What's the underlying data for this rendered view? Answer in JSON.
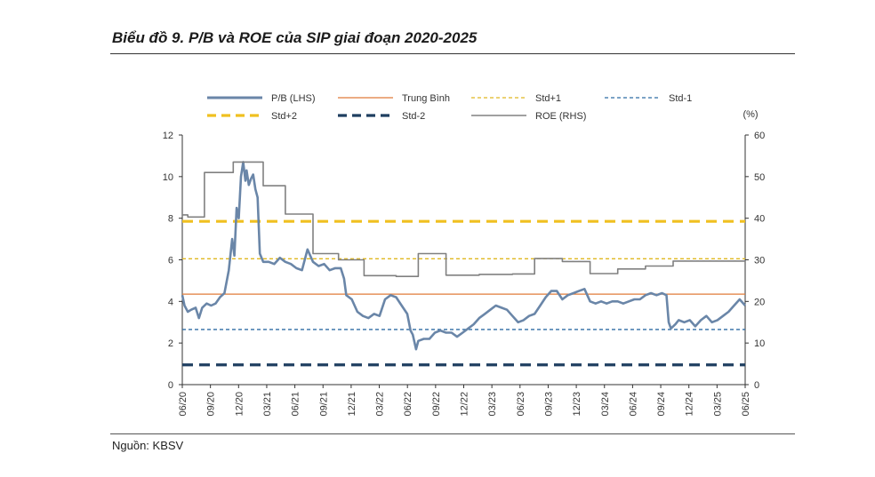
{
  "header": {
    "title": "Biểu đồ 9. P/B và ROE của SIP giai đoạn 2020-2025"
  },
  "footer": {
    "source": "Nguồn: KBSV"
  },
  "chart_data": {
    "type": "line",
    "title": "Biểu đồ 9. P/B và ROE của SIP giai đoạn 2020-2025",
    "ylim": [
      0,
      12
    ],
    "y_ticks": [
      0,
      2,
      4,
      6,
      8,
      10,
      12
    ],
    "y2lim": [
      0,
      60
    ],
    "y2_ticks": [
      0,
      10,
      20,
      30,
      40,
      50,
      60
    ],
    "y2_unit": "(%)",
    "x_range": [
      2020.42,
      2025.5
    ],
    "x_ticks": [
      "06/20",
      "09/20",
      "12/20",
      "03/21",
      "06/21",
      "09/21",
      "12/21",
      "03/22",
      "06/22",
      "09/22",
      "12/22",
      "03/23",
      "06/23",
      "09/23",
      "12/23",
      "03/24",
      "06/24",
      "09/24",
      "12/24",
      "03/25",
      "06/25"
    ],
    "grid": false,
    "legend_position": "top",
    "colors": {
      "pb": "#6a86a8",
      "mean": "#e07b39",
      "std1": "#e0b820",
      "stdm1": "#2e6ca4",
      "std2": "#f0c020",
      "stdm2": "#1f3f60",
      "roe": "#808080"
    },
    "legend": [
      {
        "label": "P/B (LHS)",
        "key": "pb"
      },
      {
        "label": "Trung Bình",
        "key": "mean"
      },
      {
        "label": "Std+1",
        "key": "std1"
      },
      {
        "label": "Std-1",
        "key": "stdm1"
      },
      {
        "label": "Std+2",
        "key": "std2"
      },
      {
        "label": "Std-2",
        "key": "stdm2"
      },
      {
        "label": "ROE (RHS)",
        "key": "roe"
      }
    ],
    "reference_lines": {
      "mean": 4.35,
      "std1": 6.05,
      "stdm1": 2.65,
      "std2": 7.85,
      "stdm2": 0.95
    },
    "series": [
      {
        "name": "P/B (LHS)",
        "axis": "left",
        "points": [
          [
            2020.42,
            4.3
          ],
          [
            2020.44,
            3.8
          ],
          [
            2020.47,
            3.5
          ],
          [
            2020.5,
            3.6
          ],
          [
            2020.54,
            3.7
          ],
          [
            2020.57,
            3.2
          ],
          [
            2020.6,
            3.7
          ],
          [
            2020.64,
            3.9
          ],
          [
            2020.68,
            3.8
          ],
          [
            2020.72,
            3.9
          ],
          [
            2020.76,
            4.2
          ],
          [
            2020.8,
            4.4
          ],
          [
            2020.84,
            5.5
          ],
          [
            2020.87,
            7.0
          ],
          [
            2020.89,
            6.2
          ],
          [
            2020.91,
            8.5
          ],
          [
            2020.93,
            8.0
          ],
          [
            2020.95,
            10.0
          ],
          [
            2020.97,
            10.7
          ],
          [
            2020.99,
            9.8
          ],
          [
            2021.0,
            10.3
          ],
          [
            2021.02,
            9.6
          ],
          [
            2021.04,
            9.9
          ],
          [
            2021.06,
            10.1
          ],
          [
            2021.08,
            9.4
          ],
          [
            2021.1,
            9.0
          ],
          [
            2021.12,
            6.3
          ],
          [
            2021.15,
            5.9
          ],
          [
            2021.2,
            5.9
          ],
          [
            2021.25,
            5.8
          ],
          [
            2021.3,
            6.1
          ],
          [
            2021.35,
            5.9
          ],
          [
            2021.4,
            5.8
          ],
          [
            2021.45,
            5.6
          ],
          [
            2021.5,
            5.5
          ],
          [
            2021.55,
            6.5
          ],
          [
            2021.6,
            5.9
          ],
          [
            2021.65,
            5.7
          ],
          [
            2021.7,
            5.8
          ],
          [
            2021.75,
            5.5
          ],
          [
            2021.8,
            5.6
          ],
          [
            2021.85,
            5.6
          ],
          [
            2021.88,
            5.1
          ],
          [
            2021.9,
            4.3
          ],
          [
            2021.95,
            4.1
          ],
          [
            2022.0,
            3.5
          ],
          [
            2022.05,
            3.3
          ],
          [
            2022.1,
            3.2
          ],
          [
            2022.15,
            3.4
          ],
          [
            2022.2,
            3.3
          ],
          [
            2022.25,
            4.1
          ],
          [
            2022.3,
            4.3
          ],
          [
            2022.35,
            4.2
          ],
          [
            2022.4,
            3.8
          ],
          [
            2022.45,
            3.4
          ],
          [
            2022.48,
            2.6
          ],
          [
            2022.5,
            2.4
          ],
          [
            2022.53,
            1.7
          ],
          [
            2022.55,
            2.1
          ],
          [
            2022.6,
            2.2
          ],
          [
            2022.65,
            2.2
          ],
          [
            2022.7,
            2.5
          ],
          [
            2022.75,
            2.6
          ],
          [
            2022.8,
            2.5
          ],
          [
            2022.85,
            2.5
          ],
          [
            2022.9,
            2.3
          ],
          [
            2022.95,
            2.5
          ],
          [
            2023.0,
            2.7
          ],
          [
            2023.05,
            2.9
          ],
          [
            2023.1,
            3.2
          ],
          [
            2023.15,
            3.4
          ],
          [
            2023.2,
            3.6
          ],
          [
            2023.25,
            3.8
          ],
          [
            2023.3,
            3.7
          ],
          [
            2023.35,
            3.6
          ],
          [
            2023.4,
            3.3
          ],
          [
            2023.45,
            3.0
          ],
          [
            2023.5,
            3.1
          ],
          [
            2023.55,
            3.3
          ],
          [
            2023.6,
            3.4
          ],
          [
            2023.65,
            3.8
          ],
          [
            2023.7,
            4.2
          ],
          [
            2023.75,
            4.5
          ],
          [
            2023.8,
            4.5
          ],
          [
            2023.85,
            4.1
          ],
          [
            2023.9,
            4.3
          ],
          [
            2023.95,
            4.4
          ],
          [
            2024.0,
            4.5
          ],
          [
            2024.05,
            4.6
          ],
          [
            2024.1,
            4.0
          ],
          [
            2024.15,
            3.9
          ],
          [
            2024.2,
            4.0
          ],
          [
            2024.25,
            3.9
          ],
          [
            2024.3,
            4.0
          ],
          [
            2024.35,
            4.0
          ],
          [
            2024.4,
            3.9
          ],
          [
            2024.45,
            4.0
          ],
          [
            2024.5,
            4.1
          ],
          [
            2024.55,
            4.1
          ],
          [
            2024.6,
            4.3
          ],
          [
            2024.65,
            4.4
          ],
          [
            2024.7,
            4.3
          ],
          [
            2024.75,
            4.4
          ],
          [
            2024.79,
            4.3
          ],
          [
            2024.81,
            3.0
          ],
          [
            2024.83,
            2.7
          ],
          [
            2024.87,
            2.9
          ],
          [
            2024.9,
            3.1
          ],
          [
            2024.95,
            3.0
          ],
          [
            2025.0,
            3.1
          ],
          [
            2025.05,
            2.8
          ],
          [
            2025.1,
            3.1
          ],
          [
            2025.15,
            3.3
          ],
          [
            2025.2,
            3.0
          ],
          [
            2025.25,
            3.1
          ],
          [
            2025.3,
            3.3
          ],
          [
            2025.35,
            3.5
          ],
          [
            2025.4,
            3.8
          ],
          [
            2025.45,
            4.1
          ],
          [
            2025.5,
            3.8
          ]
        ]
      },
      {
        "name": "ROE (RHS)",
        "axis": "right",
        "points": [
          [
            2020.42,
            40.8
          ],
          [
            2020.47,
            40.8
          ],
          [
            2020.47,
            40.3
          ],
          [
            2020.62,
            40.3
          ],
          [
            2020.62,
            51.0
          ],
          [
            2020.88,
            51.0
          ],
          [
            2020.88,
            53.5
          ],
          [
            2021.15,
            53.5
          ],
          [
            2021.15,
            47.8
          ],
          [
            2021.35,
            47.8
          ],
          [
            2021.35,
            41.0
          ],
          [
            2021.6,
            41.0
          ],
          [
            2021.6,
            31.5
          ],
          [
            2021.83,
            31.5
          ],
          [
            2021.83,
            30.0
          ],
          [
            2022.06,
            30.0
          ],
          [
            2022.06,
            26.2
          ],
          [
            2022.35,
            26.2
          ],
          [
            2022.35,
            26.0
          ],
          [
            2022.55,
            26.0
          ],
          [
            2022.55,
            31.5
          ],
          [
            2022.8,
            31.5
          ],
          [
            2022.8,
            26.3
          ],
          [
            2023.1,
            26.3
          ],
          [
            2023.1,
            26.5
          ],
          [
            2023.4,
            26.5
          ],
          [
            2023.4,
            26.6
          ],
          [
            2023.6,
            26.6
          ],
          [
            2023.6,
            30.3
          ],
          [
            2023.85,
            30.3
          ],
          [
            2023.85,
            29.6
          ],
          [
            2024.1,
            29.6
          ],
          [
            2024.1,
            26.7
          ],
          [
            2024.35,
            26.7
          ],
          [
            2024.35,
            27.8
          ],
          [
            2024.6,
            27.8
          ],
          [
            2024.6,
            28.5
          ],
          [
            2024.85,
            28.5
          ],
          [
            2024.85,
            29.7
          ],
          [
            2025.5,
            29.7
          ]
        ]
      }
    ]
  }
}
